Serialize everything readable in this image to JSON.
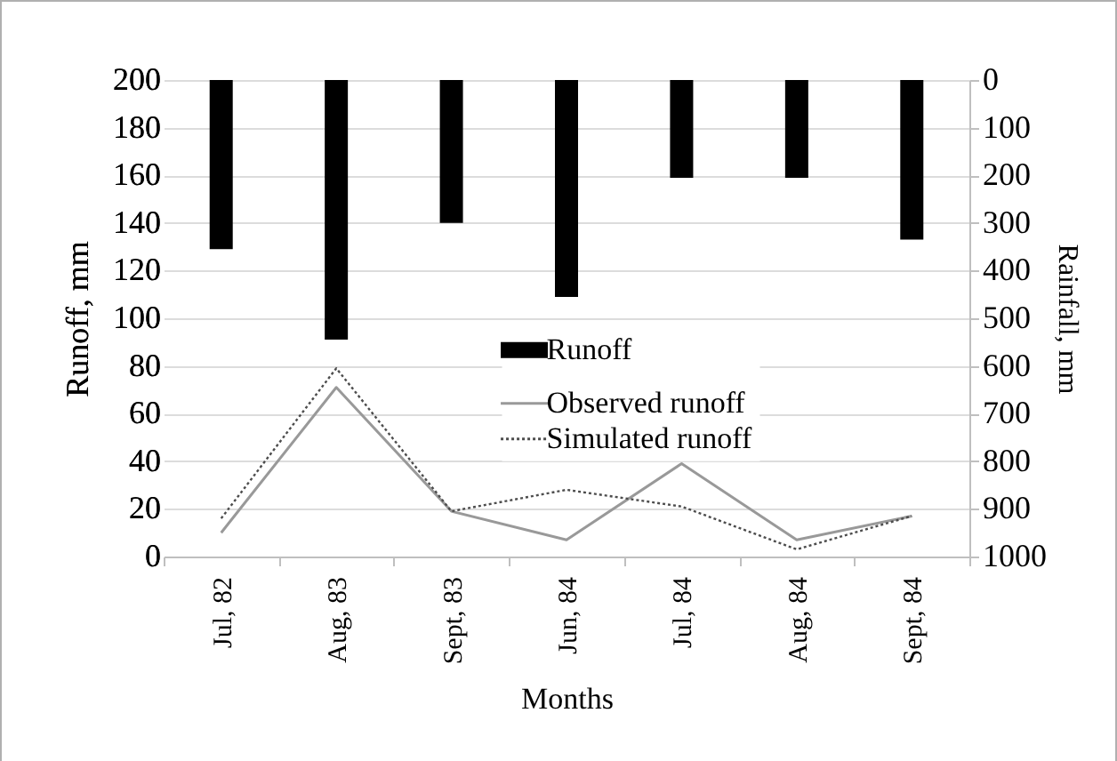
{
  "chart_data": {
    "type": "bar",
    "xlabel": "Months",
    "ylabel": "Runoff, mm",
    "y2label": "Rainfall, mm",
    "categories": [
      "Jul, 82",
      "Aug, 83",
      "Sept, 83",
      "Jun, 84",
      "Jul, 84",
      "Aug, 84",
      "Sept, 84"
    ],
    "series": [
      {
        "name": "Runoff",
        "axis": "y2",
        "color": "#000000",
        "values": [
          355,
          545,
          300,
          455,
          205,
          205,
          335
        ]
      },
      {
        "name": "Observed runoff",
        "type": "line",
        "color": "#999999",
        "values": [
          10,
          71,
          19,
          7,
          39,
          7,
          17
        ]
      },
      {
        "name": "Simulated runoff",
        "type": "line",
        "color": "#4d4d4d",
        "line_style": "dotted",
        "values": [
          16,
          79,
          19,
          28,
          21,
          3,
          17
        ]
      }
    ],
    "ylim": [
      0,
      200
    ],
    "yticks": [
      0,
      20,
      40,
      60,
      80,
      100,
      120,
      140,
      160,
      180,
      200
    ],
    "y2lim": [
      1000,
      0
    ],
    "y2ticks": [
      0,
      100,
      200,
      300,
      400,
      500,
      600,
      700,
      800,
      900,
      1000
    ],
    "grid": "y",
    "legend": "center"
  }
}
